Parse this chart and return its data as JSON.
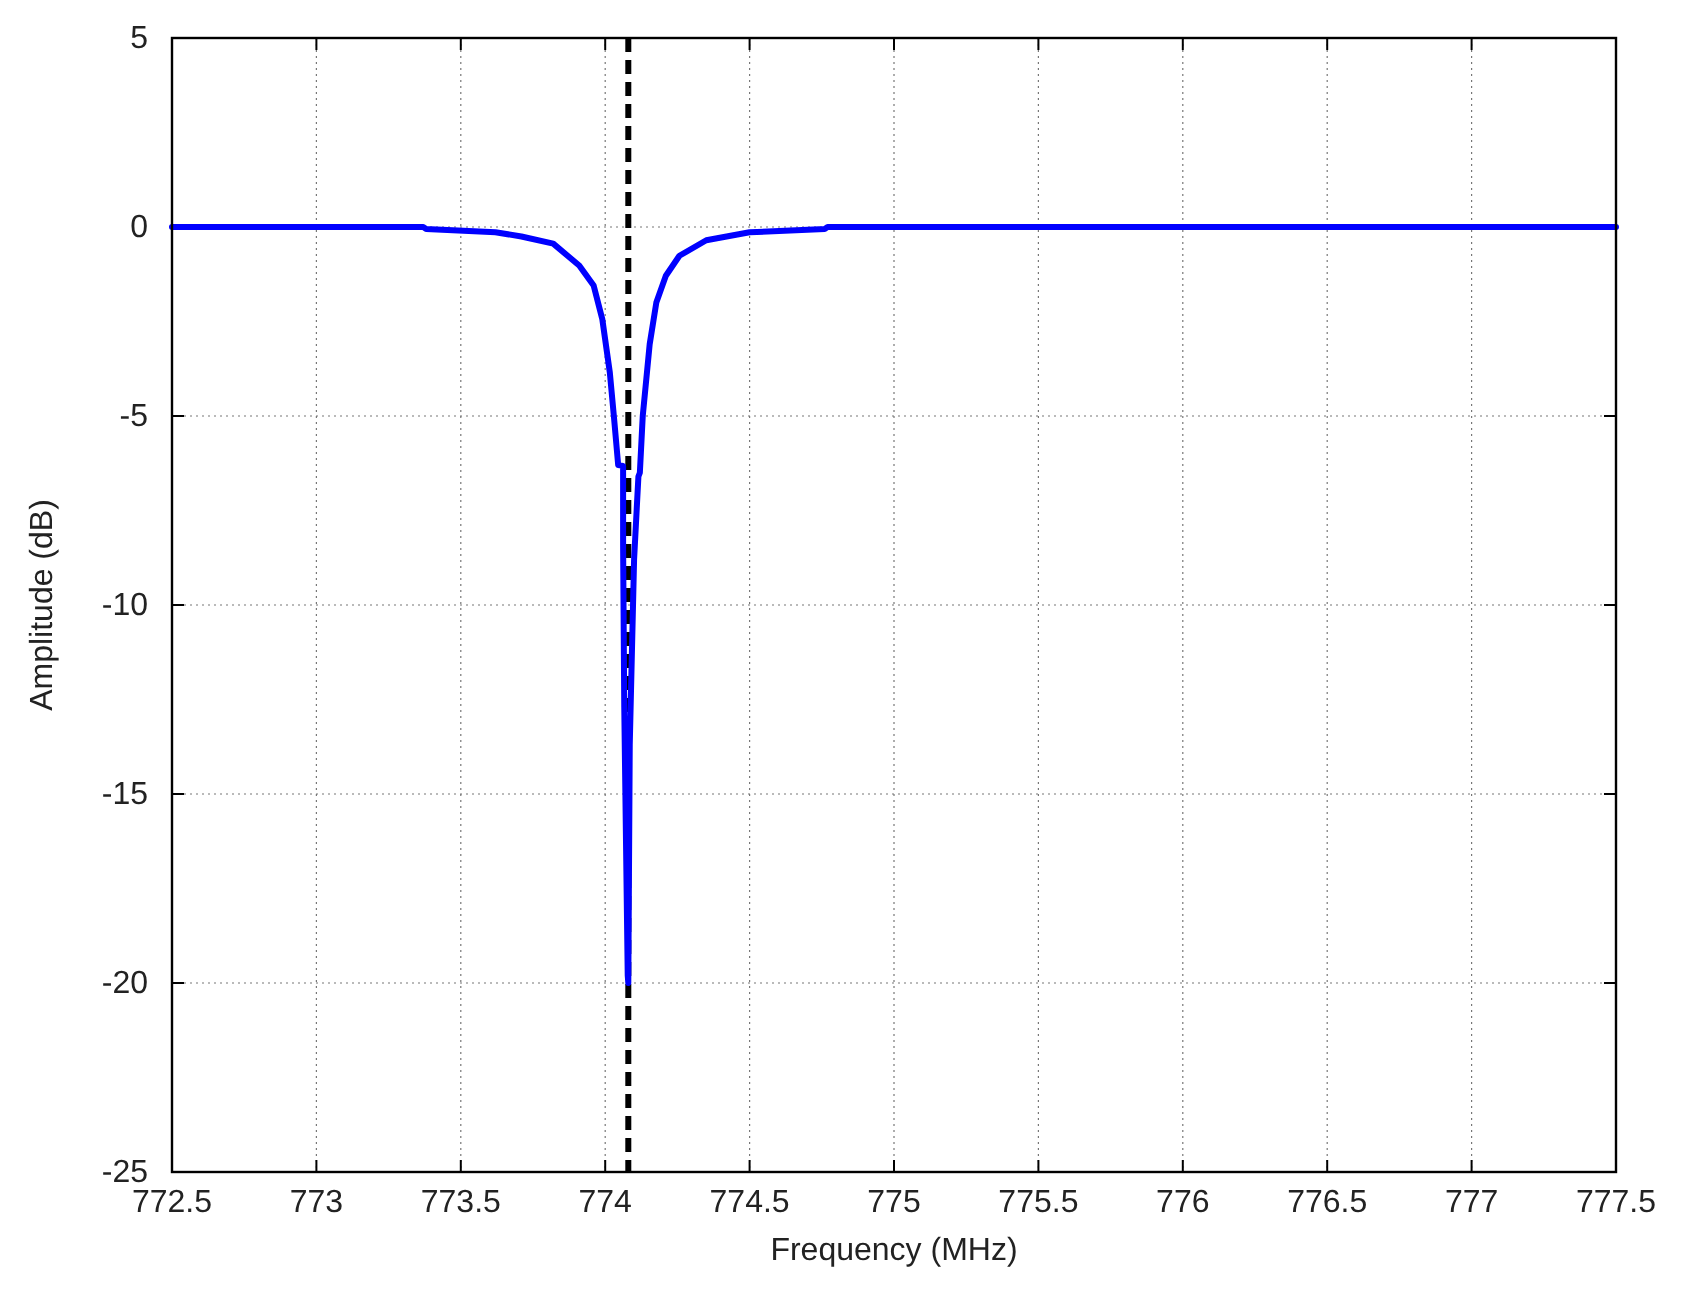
{
  "chart_data": {
    "type": "line",
    "xlabel": "Frequency (MHz)",
    "ylabel": "Amplitude (dB)",
    "xlim": [
      772.5,
      777.5
    ],
    "xticks": [
      772.5,
      773,
      773.5,
      774,
      774.5,
      775,
      775.5,
      776,
      776.5,
      777,
      777.5
    ],
    "ylim": [
      -25,
      5
    ],
    "yticks": [
      -25,
      -20,
      -15,
      -10,
      -5,
      0,
      5
    ],
    "grid": true,
    "marker": "none",
    "line_style": "solid",
    "ref_lines": [
      {
        "axis": "x",
        "value": 774.08,
        "color": "#000000",
        "line_style": "dashed"
      }
    ],
    "series": [
      {
        "color": "#0000ff",
        "x": [
          772.5,
          773.37,
          773.38,
          773.62,
          773.71,
          773.82,
          773.91,
          773.96,
          773.99,
          774.016,
          774.03,
          774.045,
          774.062,
          774.062,
          774.066,
          774.078,
          774.08,
          774.085,
          774.1,
          774.115,
          774.12,
          774.13,
          774.154,
          774.177,
          774.21,
          774.257,
          774.35,
          774.5,
          774.76,
          774.77,
          777.5
        ],
        "values": [
          0,
          0,
          -0.05,
          -0.14,
          -0.25,
          -0.44,
          -1.02,
          -1.55,
          -2.44,
          -3.85,
          -5.0,
          -6.3,
          -6.32,
          -8.43,
          -12.7,
          -19.8,
          -20,
          -13.7,
          -8.8,
          -6.6,
          -6.5,
          -5,
          -3.1,
          -2.0,
          -1.29,
          -0.76,
          -0.35,
          -0.14,
          -0.05,
          0,
          0
        ]
      }
    ]
  }
}
